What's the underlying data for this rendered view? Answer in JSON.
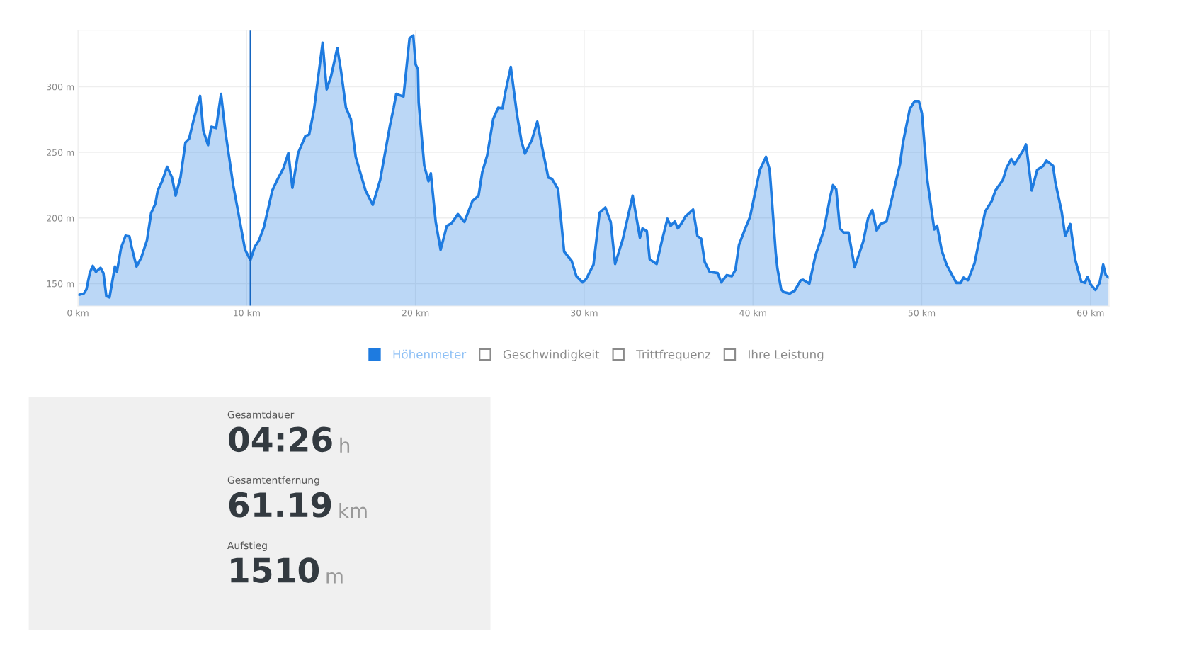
{
  "chart_data": [
    {
      "type": "area",
      "xlim": [
        0,
        61.1
      ],
      "ylim": [
        133,
        343
      ],
      "xticks": [
        {
          "value": 0,
          "label": "0 km"
        },
        {
          "value": 10,
          "label": "10 km"
        },
        {
          "value": 20,
          "label": "20 km"
        },
        {
          "value": 30,
          "label": "30 km"
        },
        {
          "value": 40,
          "label": "40 km"
        },
        {
          "value": 50,
          "label": "50 km"
        },
        {
          "value": 60,
          "label": "60 km"
        }
      ],
      "yticks": [
        {
          "value": 150,
          "label": "150 m"
        },
        {
          "value": 200,
          "label": "200 m"
        },
        {
          "value": 250,
          "label": "250 m"
        },
        {
          "value": 300,
          "label": "300 m"
        }
      ],
      "grid": true,
      "legend": "bottom",
      "ref_lines": [
        {
          "axis": "x",
          "value": 10.22,
          "color": "#1565c0"
        }
      ],
      "series": [
        {
          "name": "Höhenmeter",
          "color": "#1e7be0",
          "x": [
            0.06,
            0.35,
            0.5,
            0.71,
            0.88,
            1.06,
            1.34,
            1.51,
            1.68,
            1.87,
            2.19,
            2.31,
            2.55,
            2.82,
            3.05,
            3.18,
            3.47,
            3.76,
            4.09,
            4.34,
            4.59,
            4.73,
            4.99,
            5.28,
            5.57,
            5.79,
            6.08,
            6.37,
            6.59,
            6.88,
            7.24,
            7.43,
            7.71,
            7.9,
            8.19,
            8.48,
            8.74,
            8.98,
            9.2,
            9.49,
            9.9,
            10.22,
            10.48,
            10.73,
            11.02,
            11.52,
            11.81,
            12.18,
            12.47,
            12.71,
            13.05,
            13.48,
            13.7,
            13.99,
            14.5,
            14.74,
            15.0,
            15.37,
            15.59,
            15.88,
            16.17,
            16.46,
            17.04,
            17.47,
            17.91,
            18.49,
            18.71,
            18.86,
            19.29,
            19.65,
            19.87,
            20.01,
            20.15,
            20.19,
            20.52,
            20.77,
            20.91,
            21.2,
            21.49,
            21.86,
            22.14,
            22.51,
            22.9,
            23.38,
            23.74,
            23.96,
            24.25,
            24.61,
            24.9,
            25.16,
            25.33,
            25.65,
            26.01,
            26.28,
            26.49,
            26.9,
            27.22,
            27.51,
            27.87,
            28.09,
            28.45,
            28.81,
            29.25,
            29.54,
            29.9,
            30.12,
            30.55,
            30.91,
            31.25,
            31.57,
            31.83,
            32.29,
            32.87,
            33.3,
            33.45,
            33.71,
            33.88,
            34.29,
            34.61,
            34.93,
            35.12,
            35.36,
            35.55,
            35.8,
            35.99,
            36.45,
            36.71,
            36.93,
            37.14,
            37.43,
            37.91,
            38.12,
            38.45,
            38.74,
            38.96,
            39.17,
            39.54,
            39.83,
            40.41,
            40.77,
            40.99,
            41.35,
            41.45,
            41.67,
            41.81,
            42.18,
            42.47,
            42.83,
            42.97,
            43.34,
            43.7,
            44.21,
            44.57,
            44.74,
            44.93,
            45.15,
            45.37,
            45.66,
            46.02,
            46.53,
            46.82,
            47.07,
            47.33,
            47.55,
            47.91,
            48.27,
            48.71,
            48.88,
            49.29,
            49.58,
            49.83,
            50.01,
            50.33,
            50.74,
            50.91,
            51.18,
            51.47,
            52.05,
            52.31,
            52.48,
            52.74,
            53.13,
            53.5,
            53.76,
            54.15,
            54.37,
            54.81,
            55.02,
            55.31,
            55.5,
            55.97,
            56.18,
            56.52,
            56.84,
            57.2,
            57.39,
            57.78,
            57.92,
            58.29,
            58.5,
            58.8,
            59.09,
            59.45,
            59.67,
            59.81,
            60.0,
            60.29,
            60.54,
            60.75,
            60.9,
            61.07
          ],
          "values": [
            141.5,
            142.5,
            145.5,
            158.5,
            163.5,
            159,
            162,
            158,
            140.5,
            139.5,
            163,
            159,
            177,
            186.5,
            186,
            178,
            163,
            170,
            183,
            204,
            211,
            221,
            228,
            239,
            231,
            217,
            231,
            257.5,
            260.5,
            276,
            293,
            266.5,
            255.5,
            269.5,
            268.5,
            294.5,
            265.5,
            244.5,
            225,
            205,
            176,
            168,
            178,
            183,
            193,
            221,
            229,
            238,
            249.5,
            223,
            249.5,
            262.5,
            263.5,
            282.5,
            333.5,
            298,
            308,
            329.5,
            312,
            284,
            275.5,
            246.5,
            221,
            210,
            229,
            270.5,
            284,
            294.5,
            292.5,
            337,
            339,
            317,
            313,
            288,
            240,
            228,
            234,
            197,
            175.8,
            194,
            196,
            203,
            197,
            213,
            217,
            235,
            247.6,
            275.4,
            284,
            283.5,
            296,
            315,
            279.5,
            258.5,
            249,
            259.5,
            273.4,
            253.6,
            230.8,
            229.8,
            222,
            174.4,
            167.5,
            155.6,
            151,
            153.6,
            164.5,
            204,
            208,
            197,
            165,
            184,
            217,
            185,
            192,
            190,
            168.5,
            165,
            183,
            199.4,
            194,
            197.4,
            192,
            196.6,
            201,
            206.5,
            186.3,
            184.3,
            166.5,
            159,
            158,
            151,
            156.5,
            155.6,
            160.5,
            179.4,
            192,
            201,
            236.7,
            246.6,
            236.7,
            173.4,
            161.5,
            145.6,
            143.7,
            142.5,
            144.6,
            152.6,
            153,
            150,
            171.4,
            191.2,
            216,
            225,
            222,
            192,
            189,
            189,
            162.4,
            182,
            200,
            206,
            190.4,
            195.4,
            197.4,
            217,
            241,
            257,
            283,
            289,
            289,
            279.6,
            229,
            191.3,
            194.2,
            175.4,
            164.5,
            150.6,
            150.6,
            154.6,
            152.6,
            165.5,
            189,
            205,
            213,
            221,
            229,
            238,
            245,
            241,
            250.6,
            256,
            221,
            236.7,
            239.7,
            243.7,
            239.7,
            227,
            205,
            186.3,
            195.4,
            168.5,
            151.6,
            150.6,
            155.2,
            149.6,
            145.2,
            150.6,
            164.5,
            156.6,
            154.6
          ]
        },
        {
          "name": "Geschwindigkeit",
          "color": "#8a8a8a"
        },
        {
          "name": "Trittfrequenz",
          "color": "#8a8a8a"
        },
        {
          "name": "Ihre Leistung",
          "color": "#8a8a8a"
        }
      ]
    },
    {
      "type": "other",
      "annotations": [
        "Gesamtdauer",
        "04:26",
        "h",
        "Gesamtentfernung",
        "61.19",
        "km",
        "Aufstieg",
        "1510",
        "m"
      ]
    }
  ]
}
